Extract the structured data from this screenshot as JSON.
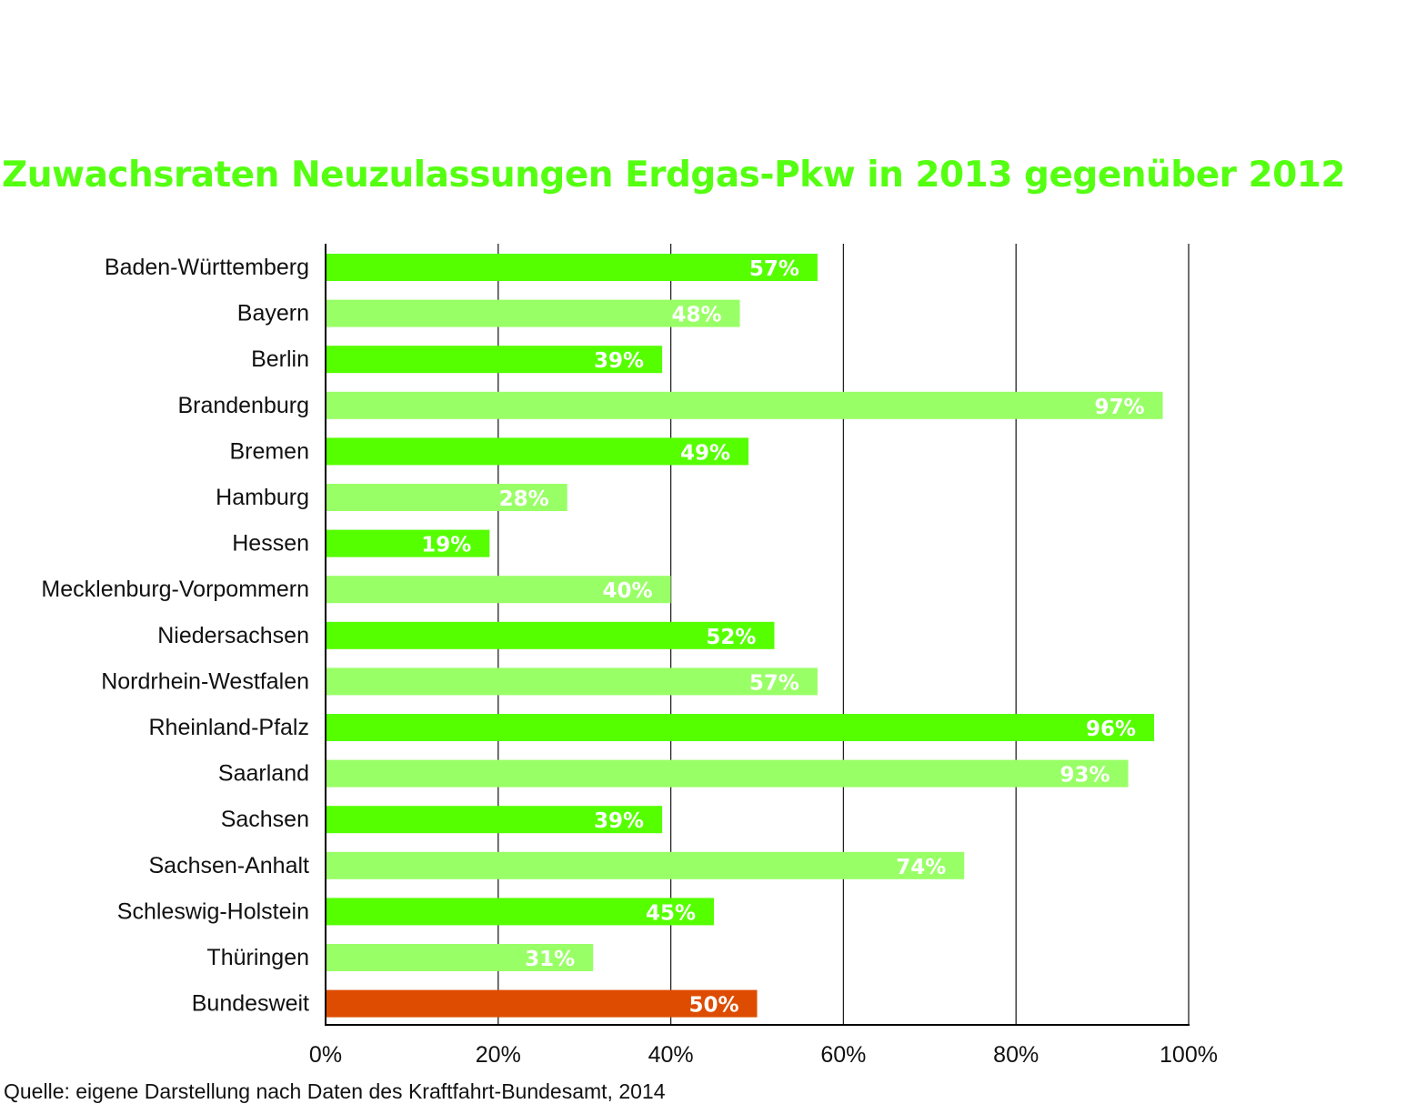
{
  "chart_data": {
    "type": "bar",
    "orientation": "horizontal",
    "title": "Zuwachsraten Neuzulassungen Erdgas-Pkw in 2013 gegenüber 2012",
    "source": "Quelle: eigene Darstellung nach Daten des Kraftfahrt-Bundesamt, 2014",
    "categories": [
      "Baden-Württemberg",
      "Bayern",
      "Berlin",
      "Brandenburg",
      "Bremen",
      "Hamburg",
      "Hessen",
      "Mecklenburg-Vorpommern",
      "Niedersachsen",
      "Nordrhein-Westfalen",
      "Rheinland-Pfalz",
      "Saarland",
      "Sachsen",
      "Sachsen-Anhalt",
      "Schleswig-Holstein",
      "Thüringen",
      "Bundesweit"
    ],
    "values": [
      57,
      48,
      39,
      97,
      49,
      28,
      19,
      40,
      52,
      57,
      96,
      93,
      39,
      74,
      45,
      31,
      50
    ],
    "value_labels": [
      "57%",
      "48%",
      "39%",
      "97%",
      "49%",
      "28%",
      "19%",
      "40%",
      "52%",
      "57%",
      "96%",
      "93%",
      "39%",
      "74%",
      "45%",
      "31%",
      "50%"
    ],
    "x_ticks": [
      0,
      20,
      40,
      60,
      80,
      100
    ],
    "x_tick_labels": [
      "0%",
      "20%",
      "40%",
      "60%",
      "80%",
      "100%"
    ],
    "xlim": [
      0,
      100
    ],
    "grid": "vertical",
    "colors": {
      "title": "#55ff11",
      "bar_dark": "#55ff00",
      "bar_light": "#99ff66",
      "bar_total": "#dd4c00",
      "value_text": "#ffffff",
      "axis": "#000000"
    },
    "bar_color_keys": [
      "bar_dark",
      "bar_light",
      "bar_dark",
      "bar_light",
      "bar_dark",
      "bar_light",
      "bar_dark",
      "bar_light",
      "bar_dark",
      "bar_light",
      "bar_dark",
      "bar_light",
      "bar_dark",
      "bar_light",
      "bar_dark",
      "bar_light",
      "bar_total"
    ]
  }
}
